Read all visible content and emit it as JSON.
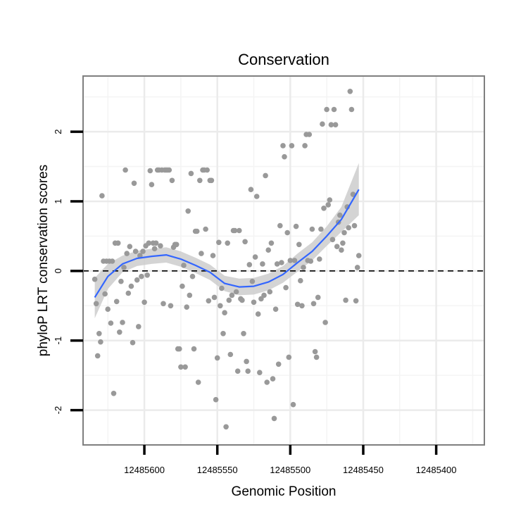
{
  "chart_data": {
    "type": "scatter",
    "title": "Conservation",
    "xlabel": "Genomic Position",
    "ylabel": "phyloP LRT conservation scores",
    "x_reversed": true,
    "xlim": [
      12485367,
      12485642
    ],
    "ylim": [
      -2.5,
      2.8
    ],
    "x_ticks": [
      12485600,
      12485550,
      12485500,
      12485450,
      12485400
    ],
    "x_tick_labels": [
      "12485600",
      "12485550",
      "12485500",
      "12485450",
      "12485400"
    ],
    "y_ticks": [
      -2,
      -1,
      0,
      1,
      2
    ],
    "y_tick_labels": [
      "-2",
      "-1",
      "0",
      "1",
      "2"
    ],
    "grid": true,
    "reference_line": {
      "y": 0,
      "style": "dashed",
      "color": "#000000"
    },
    "point_color": "#999999",
    "smooth_color": "#3366ff",
    "band_color": "#cccccc",
    "points": [
      [
        12485634,
        -0.12
      ],
      [
        12485633,
        -0.47
      ],
      [
        12485632,
        -1.22
      ],
      [
        12485631,
        -0.9
      ],
      [
        12485630,
        -1.02
      ],
      [
        12485629,
        1.08
      ],
      [
        12485628,
        0.14
      ],
      [
        12485627,
        -0.33
      ],
      [
        12485626,
        0.14
      ],
      [
        12485625,
        -0.55
      ],
      [
        12485624,
        0.14
      ],
      [
        12485623,
        -0.75
      ],
      [
        12485622,
        0.14
      ],
      [
        12485621,
        -1.76
      ],
      [
        12485620,
        0.4
      ],
      [
        12485619,
        -0.44
      ],
      [
        12485618,
        0.4
      ],
      [
        12485617,
        -0.88
      ],
      [
        12485616,
        -0.15
      ],
      [
        12485615,
        -0.74
      ],
      [
        12485614,
        0.05
      ],
      [
        12485613,
        1.45
      ],
      [
        12485612,
        0.25
      ],
      [
        12485611,
        -0.32
      ],
      [
        12485610,
        0.35
      ],
      [
        12485609,
        -0.22
      ],
      [
        12485608,
        -1.03
      ],
      [
        12485607,
        1.26
      ],
      [
        12485606,
        0.28
      ],
      [
        12485605,
        -0.13
      ],
      [
        12485604,
        -0.8
      ],
      [
        12485603,
        0.22
      ],
      [
        12485602,
        -0.08
      ],
      [
        12485601,
        0.28
      ],
      [
        12485600,
        -0.45
      ],
      [
        12485599,
        0.36
      ],
      [
        12485598,
        -0.06
      ],
      [
        12485597,
        0.4
      ],
      [
        12485596,
        1.44
      ],
      [
        12485595,
        1.24
      ],
      [
        12485594,
        0.4
      ],
      [
        12485593,
        0.32
      ],
      [
        12485592,
        0.4
      ],
      [
        12485591,
        1.45
      ],
      [
        12485590,
        1.45
      ],
      [
        12485589,
        0.36
      ],
      [
        12485588,
        1.45
      ],
      [
        12485587,
        -0.47
      ],
      [
        12485586,
        1.45
      ],
      [
        12485585,
        1.45
      ],
      [
        12485584,
        1.45
      ],
      [
        12485583,
        1.45
      ],
      [
        12485582,
        -0.5
      ],
      [
        12485581,
        1.3
      ],
      [
        12485580,
        0.34
      ],
      [
        12485579,
        0.38
      ],
      [
        12485578,
        0.38
      ],
      [
        12485577,
        -1.12
      ],
      [
        12485576,
        -1.12
      ],
      [
        12485575,
        -1.38
      ],
      [
        12485574,
        -0.22
      ],
      [
        12485573,
        0.08
      ],
      [
        12485572,
        -1.38
      ],
      [
        12485571,
        -0.52
      ],
      [
        12485570,
        0.86
      ],
      [
        12485569,
        -0.35
      ],
      [
        12485568,
        1.4
      ],
      [
        12485567,
        -0.08
      ],
      [
        12485566,
        -1.12
      ],
      [
        12485565,
        0.57
      ],
      [
        12485564,
        0.57
      ],
      [
        12485563,
        -1.6
      ],
      [
        12485562,
        1.3
      ],
      [
        12485561,
        0.25
      ],
      [
        12485560,
        1.45
      ],
      [
        12485559,
        1.45
      ],
      [
        12485558,
        0.6
      ],
      [
        12485557,
        1.45
      ],
      [
        12485556,
        -0.43
      ],
      [
        12485555,
        1.3
      ],
      [
        12485554,
        1.3
      ],
      [
        12485553,
        0.22
      ],
      [
        12485552,
        -0.38
      ],
      [
        12485551,
        -1.85
      ],
      [
        12485550,
        -1.25
      ],
      [
        12485549,
        0.41
      ],
      [
        12485548,
        -0.5
      ],
      [
        12485547,
        -0.25
      ],
      [
        12485546,
        -0.9
      ],
      [
        12485545,
        -0.6
      ],
      [
        12485544,
        -2.24
      ],
      [
        12485543,
        0.4
      ],
      [
        12485542,
        -0.42
      ],
      [
        12485541,
        -1.2
      ],
      [
        12485540,
        -0.35
      ],
      [
        12485539,
        0.58
      ],
      [
        12485538,
        0.58
      ],
      [
        12485537,
        -0.3
      ],
      [
        12485536,
        -1.44
      ],
      [
        12485535,
        0.58
      ],
      [
        12485534,
        -0.4
      ],
      [
        12485533,
        -0.42
      ],
      [
        12485532,
        -0.9
      ],
      [
        12485531,
        0.42
      ],
      [
        12485530,
        -1.3
      ],
      [
        12485529,
        -1.44
      ],
      [
        12485528,
        0.09
      ],
      [
        12485527,
        1.17
      ],
      [
        12485526,
        -0.15
      ],
      [
        12485525,
        -0.45
      ],
      [
        12485524,
        0.2
      ],
      [
        12485523,
        1.07
      ],
      [
        12485522,
        -0.62
      ],
      [
        12485521,
        -1.46
      ],
      [
        12485520,
        -0.4
      ],
      [
        12485519,
        0.1
      ],
      [
        12485518,
        -0.35
      ],
      [
        12485517,
        1.37
      ],
      [
        12485516,
        -1.6
      ],
      [
        12485515,
        0.3
      ],
      [
        12485514,
        -0.3
      ],
      [
        12485513,
        0.4
      ],
      [
        12485512,
        -1.55
      ],
      [
        12485511,
        -2.12
      ],
      [
        12485510,
        -0.55
      ],
      [
        12485509,
        0.1
      ],
      [
        12485508,
        -1.34
      ],
      [
        12485507,
        0.65
      ],
      [
        12485506,
        0.12
      ],
      [
        12485505,
        1.8
      ],
      [
        12485504,
        1.64
      ],
      [
        12485503,
        -0.24
      ],
      [
        12485502,
        0.55
      ],
      [
        12485501,
        -1.24
      ],
      [
        12485500,
        0.15
      ],
      [
        12485499,
        1.8
      ],
      [
        12485498,
        -1.92
      ],
      [
        12485497,
        0.15
      ],
      [
        12485496,
        0.64
      ],
      [
        12485495,
        -0.48
      ],
      [
        12485494,
        0.38
      ],
      [
        12485493,
        -0.14
      ],
      [
        12485492,
        -0.5
      ],
      [
        12485491,
        0.05
      ],
      [
        12485490,
        1.8
      ],
      [
        12485489,
        1.96
      ],
      [
        12485488,
        0.15
      ],
      [
        12485487,
        1.96
      ],
      [
        12485486,
        0.14
      ],
      [
        12485485,
        0.6
      ],
      [
        12485484,
        -0.47
      ],
      [
        12485483,
        -1.16
      ],
      [
        12485482,
        -1.24
      ],
      [
        12485481,
        -0.38
      ],
      [
        12485480,
        0.17
      ],
      [
        12485479,
        0.6
      ],
      [
        12485478,
        2.11
      ],
      [
        12485477,
        0.9
      ],
      [
        12485476,
        -0.74
      ],
      [
        12485475,
        2.32
      ],
      [
        12485474,
        0.95
      ],
      [
        12485473,
        1.02
      ],
      [
        12485472,
        2.1
      ],
      [
        12485471,
        0.45
      ],
      [
        12485470,
        2.32
      ],
      [
        12485469,
        2.1
      ],
      [
        12485468,
        0.35
      ],
      [
        12485467,
        0.7
      ],
      [
        12485466,
        0.8
      ],
      [
        12485465,
        0.3
      ],
      [
        12485464,
        0.4
      ],
      [
        12485463,
        0.55
      ],
      [
        12485462,
        -0.42
      ],
      [
        12485461,
        0.92
      ],
      [
        12485460,
        0.62
      ],
      [
        12485459,
        2.58
      ],
      [
        12485458,
        2.32
      ],
      [
        12485457,
        1.1
      ],
      [
        12485456,
        0.65
      ],
      [
        12485455,
        -0.43
      ],
      [
        12485454,
        0.05
      ],
      [
        12485453,
        0.22
      ]
    ],
    "smooth_fit": [
      [
        12485634,
        -0.38
      ],
      [
        12485625,
        -0.08
      ],
      [
        12485615,
        0.1
      ],
      [
        12485605,
        0.18
      ],
      [
        12485595,
        0.21
      ],
      [
        12485585,
        0.23
      ],
      [
        12485575,
        0.17
      ],
      [
        12485565,
        0.08
      ],
      [
        12485555,
        -0.02
      ],
      [
        12485545,
        -0.18
      ],
      [
        12485535,
        -0.23
      ],
      [
        12485525,
        -0.22
      ],
      [
        12485515,
        -0.16
      ],
      [
        12485505,
        -0.05
      ],
      [
        12485495,
        0.12
      ],
      [
        12485485,
        0.28
      ],
      [
        12485475,
        0.5
      ],
      [
        12485465,
        0.74
      ],
      [
        12485453,
        1.17
      ]
    ],
    "band_lower": [
      [
        12485634,
        -0.68
      ],
      [
        12485625,
        -0.26
      ],
      [
        12485615,
        -0.02
      ],
      [
        12485605,
        0.07
      ],
      [
        12485595,
        0.1
      ],
      [
        12485585,
        0.12
      ],
      [
        12485575,
        0.06
      ],
      [
        12485565,
        -0.03
      ],
      [
        12485555,
        -0.13
      ],
      [
        12485545,
        -0.29
      ],
      [
        12485535,
        -0.35
      ],
      [
        12485525,
        -0.34
      ],
      [
        12485515,
        -0.28
      ],
      [
        12485505,
        -0.17
      ],
      [
        12485495,
        -0.01
      ],
      [
        12485485,
        0.15
      ],
      [
        12485475,
        0.36
      ],
      [
        12485465,
        0.56
      ],
      [
        12485453,
        0.8
      ]
    ],
    "band_upper": [
      [
        12485634,
        -0.1
      ],
      [
        12485625,
        0.1
      ],
      [
        12485615,
        0.22
      ],
      [
        12485605,
        0.29
      ],
      [
        12485595,
        0.32
      ],
      [
        12485585,
        0.34
      ],
      [
        12485575,
        0.28
      ],
      [
        12485565,
        0.19
      ],
      [
        12485555,
        0.09
      ],
      [
        12485545,
        -0.07
      ],
      [
        12485535,
        -0.11
      ],
      [
        12485525,
        -0.1
      ],
      [
        12485515,
        -0.04
      ],
      [
        12485505,
        0.07
      ],
      [
        12485495,
        0.25
      ],
      [
        12485485,
        0.41
      ],
      [
        12485475,
        0.64
      ],
      [
        12485465,
        0.92
      ],
      [
        12485453,
        1.55
      ]
    ]
  }
}
